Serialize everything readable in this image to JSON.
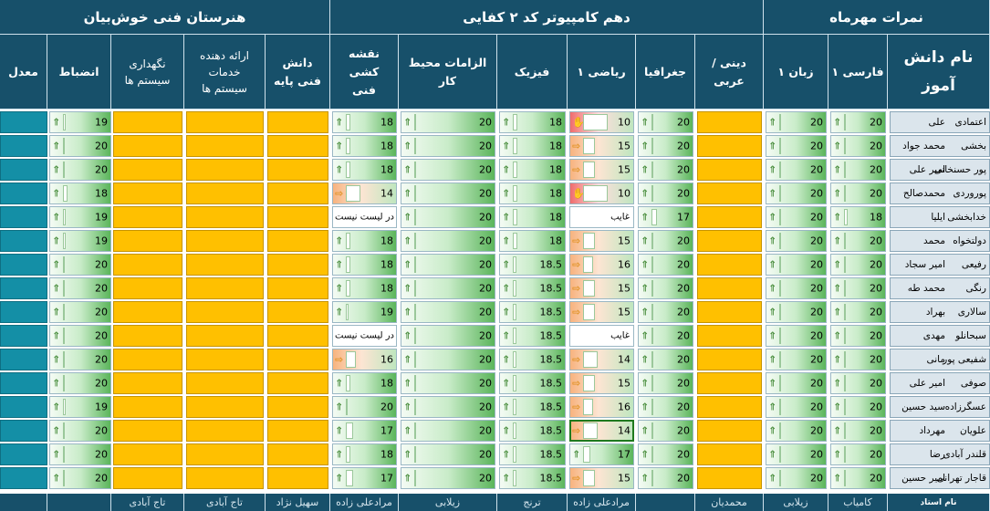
{
  "headers": {
    "school": "هنرستان فنی خوش‌بیان",
    "class_title": "دهم کامپیوتر کد ۲ کفایی",
    "grades_title": "نمرات مهرماه"
  },
  "columns": {
    "average": "معدل",
    "discipline": "انضباط",
    "maintenance": "نگهداری سیستم ها",
    "services": "ارائه دهنده خدمات سیستم ها",
    "basic_tech": "دانش فنی پایه",
    "drafting": "نقشه کشی فنی",
    "safety": "الزامات محیط کار",
    "physics": "فیزیک",
    "math": "ریاضی ۱",
    "geography": "جغرافیا",
    "religion": "دینی / عربی",
    "english": "زبان ۱",
    "persian": "فارسی ۱",
    "student_name": "نام دانش آموز"
  },
  "students": [
    {
      "first": "علی",
      "last": "اعتمادی",
      "persian": 20,
      "english": 20,
      "geography": 20,
      "math": 10,
      "physics": 18,
      "safety": 20,
      "drafting": 18,
      "discipline": 19
    },
    {
      "first": "محمد جواد",
      "last": "بخشی",
      "persian": 20,
      "english": 20,
      "geography": 20,
      "math": 15,
      "physics": 18,
      "safety": 20,
      "drafting": 18,
      "discipline": 20
    },
    {
      "first": "امیر علی",
      "last": "پور حسنخانی",
      "persian": 20,
      "english": 20,
      "geography": 20,
      "math": 15,
      "physics": 18,
      "safety": 20,
      "drafting": 18,
      "discipline": 20
    },
    {
      "first": "محمدصالح",
      "last": "پوروردی",
      "persian": 20,
      "english": 20,
      "geography": 20,
      "math": 10,
      "physics": 18,
      "safety": 20,
      "drafting": 14,
      "discipline": 18
    },
    {
      "first": "ایلیا",
      "last": "خدابخشی",
      "persian": 18,
      "english": 20,
      "geography": 17,
      "math": "غایب",
      "physics": 18,
      "safety": 20,
      "drafting": "در لیست نیست",
      "discipline": 19
    },
    {
      "first": "محمد",
      "last": "دولتخواه",
      "persian": 20,
      "english": 20,
      "geography": 20,
      "math": 15,
      "physics": 18,
      "safety": 20,
      "drafting": 18,
      "discipline": 19
    },
    {
      "first": "امیر سجاد",
      "last": "رفیعی",
      "persian": 20,
      "english": 20,
      "geography": 20,
      "math": 16,
      "physics": 18.5,
      "safety": 20,
      "drafting": 18,
      "discipline": 20
    },
    {
      "first": "محمد طه",
      "last": "رنگی",
      "persian": 20,
      "english": 20,
      "geography": 20,
      "math": 15,
      "physics": 18.5,
      "safety": 20,
      "drafting": 18,
      "discipline": 20
    },
    {
      "first": "بهراد",
      "last": "سالاری",
      "persian": 20,
      "english": 20,
      "geography": 20,
      "math": 15,
      "physics": 18.5,
      "safety": 20,
      "drafting": 19,
      "discipline": 20
    },
    {
      "first": "مهدی",
      "last": "سبحانلو",
      "persian": 20,
      "english": 20,
      "geography": 20,
      "math": "غایب",
      "physics": 18.5,
      "safety": 20,
      "drafting": "در لیست نیست",
      "discipline": 20
    },
    {
      "first": "مانی",
      "last": "شفیعی پور",
      "persian": 20,
      "english": 20,
      "geography": 20,
      "math": 14,
      "physics": 18.5,
      "safety": 20,
      "drafting": 16,
      "discipline": 20
    },
    {
      "first": "امیر علی",
      "last": "صوفی",
      "persian": 20,
      "english": 20,
      "geography": 20,
      "math": 15,
      "physics": 18.5,
      "safety": 20,
      "drafting": 18,
      "discipline": 20
    },
    {
      "first": "سید حسین",
      "last": "عسگرزاده",
      "persian": 20,
      "english": 20,
      "geography": 20,
      "math": 16,
      "physics": 18.5,
      "safety": 20,
      "drafting": 20,
      "discipline": 19
    },
    {
      "first": "مهرداد",
      "last": "علویان",
      "persian": 20,
      "english": 20,
      "geography": 20,
      "math": 14,
      "physics": 18.5,
      "safety": 20,
      "drafting": 17,
      "discipline": 20
    },
    {
      "first": "رضا",
      "last": "قلندر آبادی",
      "persian": 20,
      "english": 20,
      "geography": 20,
      "math": 17,
      "physics": 18.5,
      "safety": 20,
      "drafting": 18,
      "discipline": 20
    },
    {
      "first": "امیر حسین",
      "last": "قاجار تهرانی",
      "persian": 20,
      "english": 20,
      "geography": 20,
      "math": 15,
      "physics": 18.5,
      "safety": 20,
      "drafting": 17,
      "discipline": 20
    }
  ],
  "teachers": {
    "label": "نام استاد",
    "persian": "کامیاب",
    "english": "زیلابی",
    "religion": "محمدیان",
    "math": "مرادعلی زاده",
    "physics": "ترنج",
    "safety": "زیلابی",
    "drafting": "مرادعلی زاده",
    "basic_tech": "سهیل نژاد",
    "services": "تاج آبادی",
    "maintenance": "تاج آبادی"
  },
  "colors": {
    "header": "#17506a",
    "empty_grade": "#ffc000",
    "average": "#148fa6",
    "name_cell": "#dbe5ec"
  },
  "icons": {
    "high": "arrow-up-icon",
    "medium": "arrow-right-icon",
    "low": "hand-down-icon"
  }
}
